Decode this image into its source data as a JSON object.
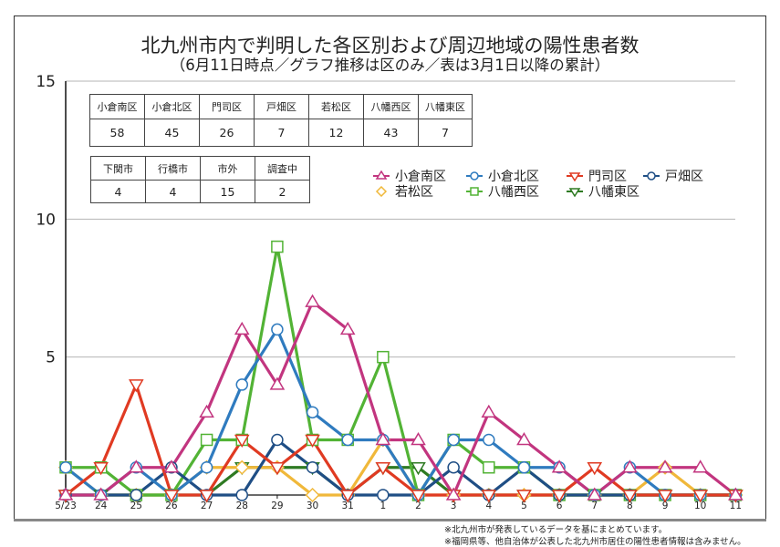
{
  "title": "北九州市内で判明した各区別および周辺地域の陽性患者数",
  "subtitle": "（6月11日時点／グラフ推移は区のみ／表は3月1日以降の累計）",
  "table_wards": {
    "headers": [
      "小倉南区",
      "小倉北区",
      "門司区",
      "戸畑区",
      "若松区",
      "八幡西区",
      "八幡東区"
    ],
    "values": [
      "58",
      "45",
      "26",
      "7",
      "12",
      "43",
      "7"
    ]
  },
  "table_other": {
    "headers": [
      "下関市",
      "行橋市",
      "市外",
      "調査中"
    ],
    "values": [
      "4",
      "4",
      "15",
      "2"
    ]
  },
  "notes": [
    "※北九州市が発表しているデータを基にまとめています。",
    "※福岡県等、他自治体が公表した北九州市居住の陽性患者情報は含みません。"
  ],
  "legend": [
    {
      "name": "小倉南区",
      "color": "#c2357f",
      "marker": "triangle-up"
    },
    {
      "name": "小倉北区",
      "color": "#2f7bbf",
      "marker": "circle"
    },
    {
      "name": "門司区",
      "color": "#e03a22",
      "marker": "triangle-down"
    },
    {
      "name": "戸畑区",
      "color": "#1f4e85",
      "marker": "circle"
    },
    {
      "name": "若松区",
      "color": "#f0b83a",
      "marker": "diamond"
    },
    {
      "name": "八幡西区",
      "color": "#52b335",
      "marker": "square"
    },
    {
      "name": "八幡東区",
      "color": "#2e7a22",
      "marker": "triangle-down"
    }
  ],
  "chart_data": {
    "type": "line",
    "title": "北九州市内で判明した各区別および周辺地域の陽性患者数",
    "subtitle": "（6月11日時点／グラフ推移は区のみ／表は3月1日以降の累計）",
    "xlabel": "",
    "ylabel": "",
    "ylim": [
      0,
      15
    ],
    "yticks": [
      5,
      10,
      15
    ],
    "grid": true,
    "legend_position": "upper-right (inside plot)",
    "categories": [
      "5/23",
      "24",
      "25",
      "26",
      "27",
      "28",
      "29",
      "30",
      "31",
      "1",
      "2",
      "3",
      "4",
      "5",
      "6",
      "7",
      "8",
      "9",
      "10",
      "11"
    ],
    "series": [
      {
        "name": "小倉南区",
        "color": "#c2357f",
        "marker": "triangle-up",
        "values": [
          0,
          0,
          1,
          1,
          3,
          6,
          4,
          7,
          6,
          2,
          2,
          0,
          3,
          2,
          1,
          0,
          1,
          1,
          1,
          0
        ]
      },
      {
        "name": "小倉北区",
        "color": "#2f7bbf",
        "marker": "circle",
        "values": [
          1,
          0,
          1,
          0,
          1,
          4,
          6,
          3,
          2,
          2,
          0,
          2,
          2,
          1,
          1,
          0,
          1,
          0,
          0,
          0
        ]
      },
      {
        "name": "門司区",
        "color": "#e03a22",
        "marker": "triangle-down",
        "values": [
          0,
          1,
          4,
          0,
          0,
          2,
          1,
          2,
          0,
          1,
          0,
          0,
          0,
          0,
          0,
          1,
          0,
          0,
          0,
          0
        ]
      },
      {
        "name": "戸畑区",
        "color": "#1f4e85",
        "marker": "circle",
        "values": [
          0,
          0,
          0,
          1,
          0,
          0,
          2,
          1,
          0,
          0,
          0,
          1,
          0,
          1,
          0,
          0,
          0,
          0,
          0,
          0
        ]
      },
      {
        "name": "若松区",
        "color": "#f0b83a",
        "marker": "diamond",
        "values": [
          1,
          0,
          0,
          0,
          1,
          1,
          1,
          0,
          0,
          2,
          0,
          0,
          0,
          0,
          0,
          0,
          0,
          1,
          0,
          0
        ]
      },
      {
        "name": "八幡西区",
        "color": "#52b335",
        "marker": "square",
        "values": [
          1,
          1,
          0,
          0,
          2,
          2,
          9,
          2,
          2,
          5,
          0,
          2,
          1,
          1,
          0,
          0,
          0,
          0,
          0,
          0
        ]
      },
      {
        "name": "八幡東区",
        "color": "#2e7a22",
        "marker": "triangle-down",
        "values": [
          0,
          0,
          0,
          0,
          0,
          1,
          1,
          1,
          0,
          1,
          1,
          0,
          0,
          0,
          0,
          0,
          0,
          0,
          0,
          0
        ]
      }
    ]
  }
}
